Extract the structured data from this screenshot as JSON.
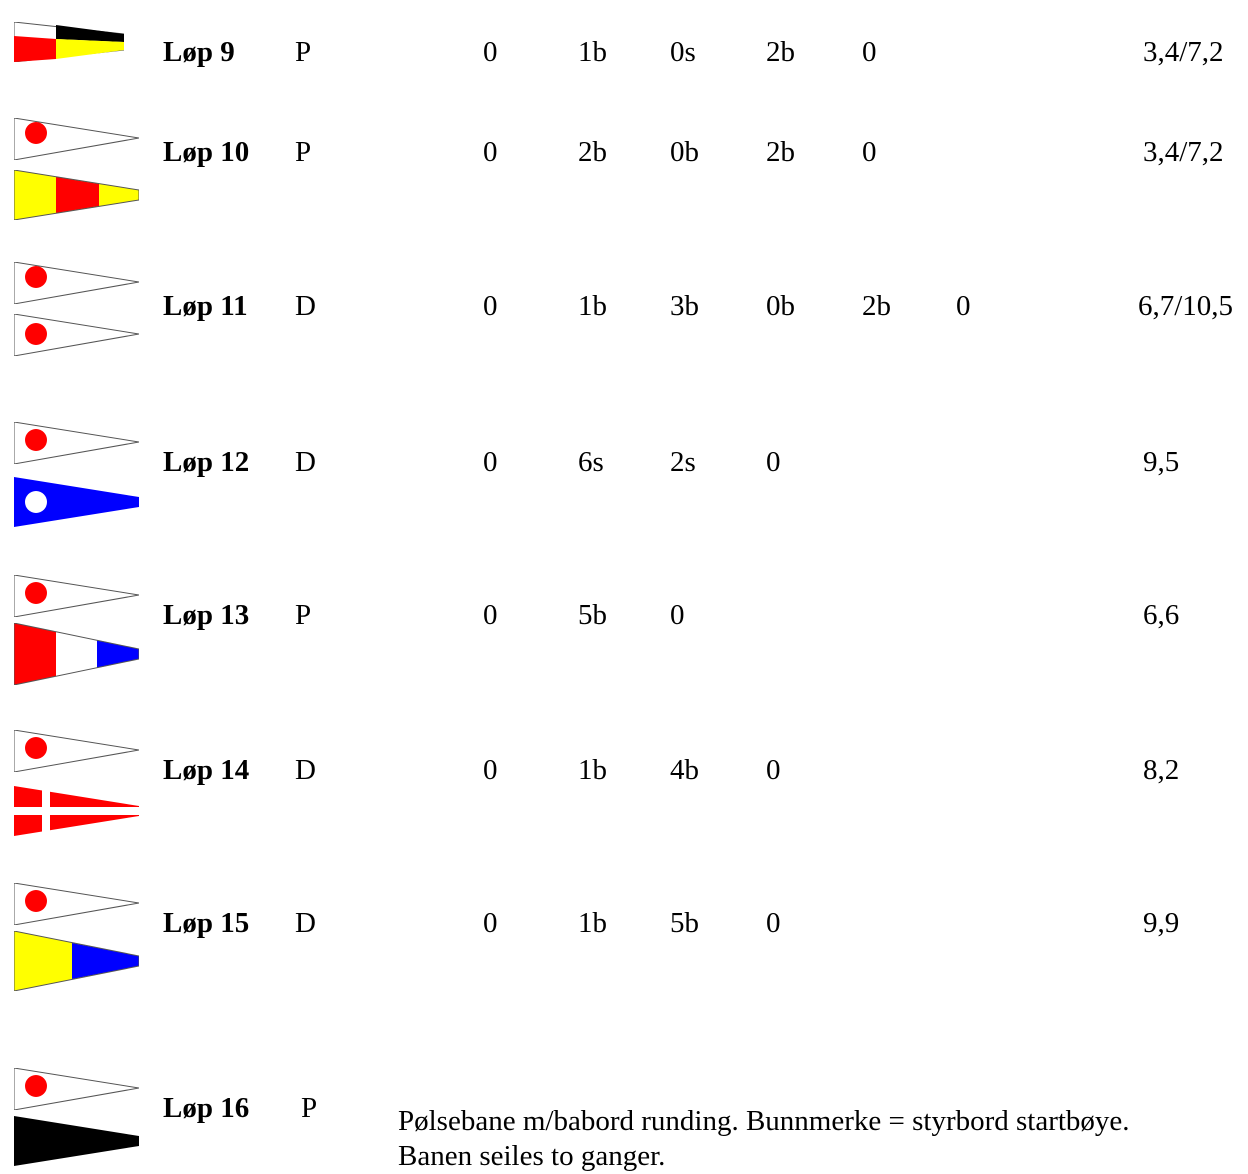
{
  "colors": {
    "red": "#ff0000",
    "yellow": "#ffff00",
    "blue": "#0000ff",
    "black": "#000000",
    "white": "#ffffff"
  },
  "races": [
    {
      "name": "Løp 9",
      "type": "P",
      "legs": [
        "0",
        "1b",
        "0s",
        "2b",
        "0"
      ],
      "distance": "3,4/7,2",
      "flags": [
        "red-yellow-black"
      ]
    },
    {
      "name": "Løp 10",
      "type": "P",
      "legs": [
        "0",
        "2b",
        "0b",
        "2b",
        "0"
      ],
      "distance": "3,4/7,2",
      "flags": [
        "red-ball-pennant",
        "yellow-red-yellow"
      ]
    },
    {
      "name": "Løp 11",
      "type": "D",
      "legs": [
        "0",
        "1b",
        "3b",
        "0b",
        "2b",
        "0"
      ],
      "distance": "6,7/10,5",
      "flags": [
        "red-ball-pennant",
        "red-ball-pennant"
      ]
    },
    {
      "name": "Løp 12",
      "type": "D",
      "legs": [
        "0",
        "6s",
        "2s",
        "0"
      ],
      "distance": "9,5",
      "flags": [
        "red-ball-pennant",
        "blue-white-ball"
      ]
    },
    {
      "name": "Løp 13",
      "type": "P",
      "legs": [
        "0",
        "5b",
        "0"
      ],
      "distance": "6,6",
      "flags": [
        "red-ball-pennant",
        "red-white-blue"
      ]
    },
    {
      "name": "Løp 14",
      "type": "D",
      "legs": [
        "0",
        "1b",
        "4b",
        "0"
      ],
      "distance": "8,2",
      "flags": [
        "red-ball-pennant",
        "red-white-cross"
      ]
    },
    {
      "name": "Løp 15",
      "type": "D",
      "legs": [
        "0",
        "1b",
        "5b",
        "0"
      ],
      "distance": "9,9",
      "flags": [
        "red-ball-pennant",
        "yellow-blue"
      ]
    }
  ],
  "race16": {
    "name": "Løp 16",
    "type": "P",
    "description_line1": "Pølsebane m/babord runding. Bunnmerke = styrbord startbøye.",
    "description_line2": "Banen seiles to ganger.",
    "flags": [
      "red-ball-pennant",
      "black-pennant"
    ]
  }
}
